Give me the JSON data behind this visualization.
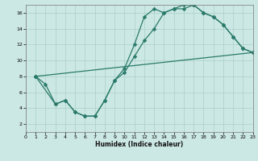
{
  "xlabel": "Humidex (Indice chaleur)",
  "bg_color": "#cce8e4",
  "grid_color": "#aacfcb",
  "line_color": "#2a7a6a",
  "xlim": [
    0,
    23
  ],
  "ylim": [
    1,
    17
  ],
  "xticks": [
    0,
    1,
    2,
    3,
    4,
    5,
    6,
    7,
    8,
    9,
    10,
    11,
    12,
    13,
    14,
    15,
    16,
    17,
    18,
    19,
    20,
    21,
    22,
    23
  ],
  "yticks": [
    2,
    4,
    6,
    8,
    10,
    12,
    14,
    16
  ],
  "curve1_x": [
    1,
    2,
    3,
    4,
    5,
    6,
    7,
    8,
    9,
    10,
    11,
    12,
    13,
    14,
    15,
    16,
    17,
    18,
    19,
    20,
    21,
    22,
    23
  ],
  "curve1_y": [
    8,
    7,
    4.5,
    5,
    3.5,
    3,
    3,
    5,
    7.5,
    9,
    12,
    15.5,
    16.5,
    16,
    16.5,
    16.5,
    17,
    16,
    15.5,
    14.5,
    13,
    11.5,
    11
  ],
  "curve2_x": [
    1,
    3,
    4,
    5,
    6,
    7,
    8,
    9,
    10,
    11,
    12,
    13,
    14,
    15,
    16,
    17,
    18,
    19,
    20,
    21,
    22,
    23
  ],
  "curve2_y": [
    8,
    4.5,
    5,
    3.5,
    3,
    3,
    5,
    7.5,
    8.5,
    10.5,
    12.5,
    14,
    16,
    16.5,
    17,
    17,
    16,
    15.5,
    14.5,
    13,
    11.5,
    11
  ],
  "curve3_x": [
    1,
    23
  ],
  "curve3_y": [
    8,
    11
  ],
  "marker_size": 2.5,
  "linewidth": 0.9
}
